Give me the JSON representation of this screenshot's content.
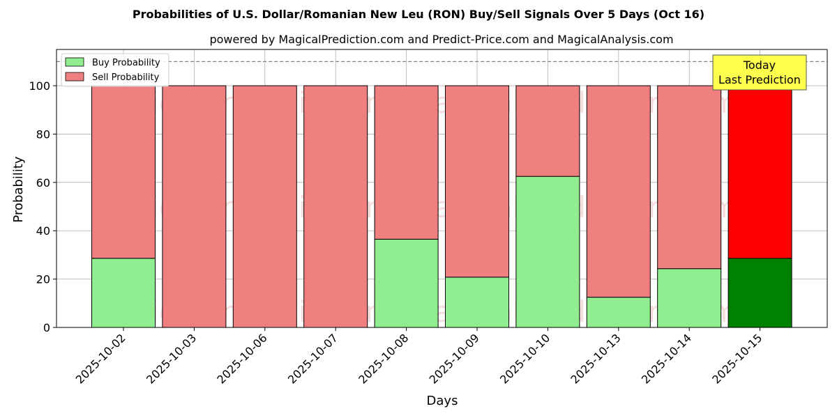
{
  "chart_data": {
    "type": "bar",
    "stacked": true,
    "title": "Probabilities of U.S. Dollar/Romanian New Leu (RON) Buy/Sell Signals Over 5 Days (Oct 16)",
    "subtitle": "powered by MagicalPrediction.com and Predict-Price.com and MagicalAnalysis.com",
    "xlabel": "Days",
    "ylabel": "Probability",
    "ylim": [
      0,
      115
    ],
    "yticks": [
      0,
      20,
      40,
      60,
      80,
      100
    ],
    "grid": true,
    "legend_position": "top-left",
    "reference_line": 110,
    "categories": [
      "2025-10-02",
      "2025-10-03",
      "2025-10-06",
      "2025-10-07",
      "2025-10-08",
      "2025-10-09",
      "2025-10-10",
      "2025-10-13",
      "2025-10-14",
      "2025-10-15"
    ],
    "series": [
      {
        "name": "Buy Probability",
        "values": [
          28.6,
          0,
          0,
          0,
          36.5,
          20.8,
          62.5,
          12.5,
          24.3,
          28.6
        ],
        "color": "#90ee90",
        "highlight_color": "#008000"
      },
      {
        "name": "Sell Probability",
        "values": [
          71.4,
          100,
          100,
          100,
          63.5,
          79.2,
          37.5,
          87.5,
          75.7,
          71.4
        ],
        "color": "#f08080",
        "highlight_color": "#ff0000"
      }
    ],
    "highlight_index": 9,
    "annotation": {
      "line1": "Today",
      "line2": "Last Prediction",
      "background": "#ffff4d"
    },
    "watermarks": [
      "MagicalAnalysis.com",
      "MagicalPrediction.com"
    ]
  }
}
